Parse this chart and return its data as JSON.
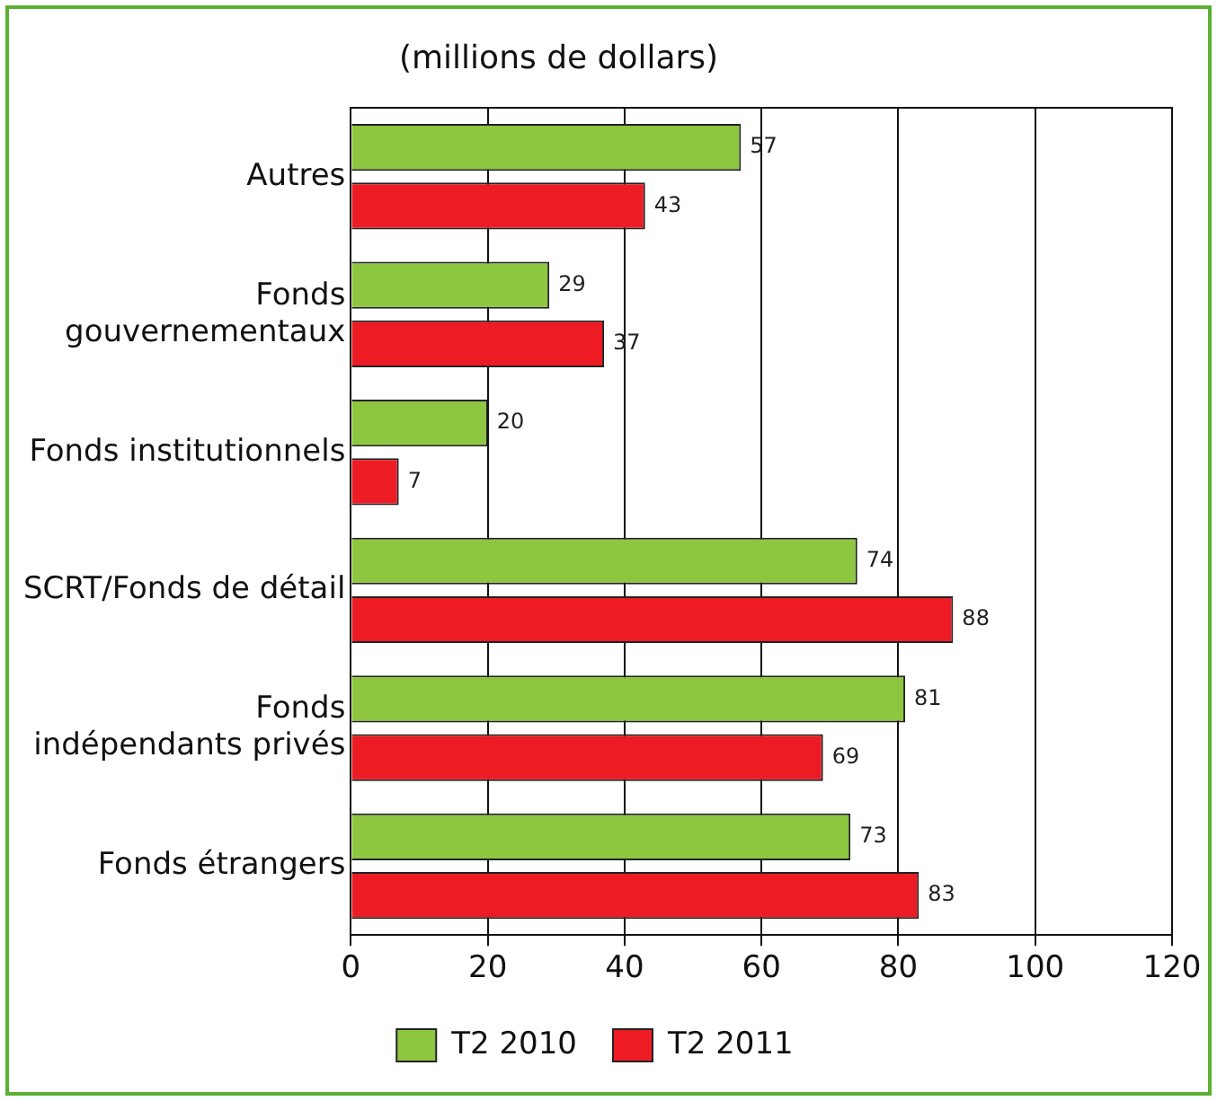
{
  "chart_data": {
    "type": "bar",
    "orientation": "horizontal",
    "title": "(millions de dollars)",
    "categories": [
      "Autres",
      "Fonds\ngouvernementaux",
      "Fonds institutionnels",
      "SCRT/Fonds de détail",
      "Fonds\nindépendants privés",
      "Fonds étrangers"
    ],
    "series": [
      {
        "name": "T2 2010",
        "color": "#8dc63f",
        "values": [
          57,
          29,
          20,
          74,
          81,
          73
        ]
      },
      {
        "name": "T2 2011",
        "color": "#ed1c24",
        "values": [
          43,
          37,
          7,
          88,
          69,
          83
        ]
      }
    ],
    "xlim": [
      0,
      120
    ],
    "xticks": [
      0,
      20,
      40,
      60,
      80,
      100,
      120
    ],
    "grid": "x",
    "legend": "bottom",
    "data_labels": true
  }
}
